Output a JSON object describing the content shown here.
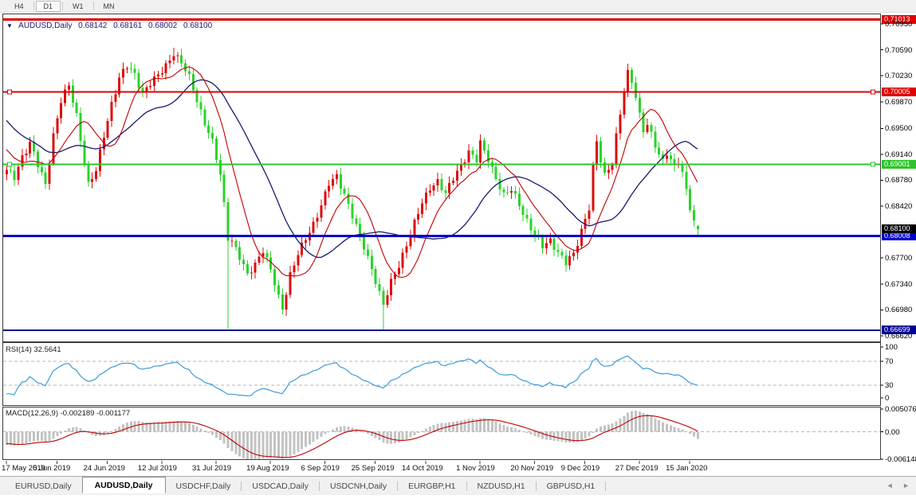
{
  "toolbar": {
    "timeframes": [
      {
        "label": "H4",
        "active": false
      },
      {
        "label": "D1",
        "active": true
      },
      {
        "label": "W1",
        "active": false
      },
      {
        "label": "MN",
        "active": false
      }
    ]
  },
  "chart": {
    "title": {
      "dropdown_icon": "▼",
      "symbol": "AUDUSD,Daily",
      "open": "0.68142",
      "high": "0.68161",
      "low": "0.68002",
      "close": "0.68100"
    },
    "indicators": {
      "rsi_label": "RSI(14) 32.5641",
      "macd_label": "MACD(12,26,9) -0.002189 -0.001177"
    },
    "axis": {
      "price_labels": [
        "0.70950",
        "0.70590",
        "0.70230",
        "0.69870",
        "0.69500",
        "0.69140",
        "0.68780",
        "0.68420",
        "0.67700",
        "0.67340",
        "0.66980",
        "0.66620"
      ],
      "rsi_labels": [
        "100",
        "70",
        "30",
        "0"
      ],
      "macd_labels": [
        {
          "text": "0.005076",
          "v": 0.005076
        },
        {
          "text": "0.00",
          "v": 0
        },
        {
          "text": "-0.006148",
          "v": -0.006148
        }
      ],
      "dates": [
        "17 May 2019",
        "5 Jun 2019",
        "24 Jun 2019",
        "12 Jul 2019",
        "31 Jul 2019",
        "19 Aug 2019",
        "6 Sep 2019",
        "25 Sep 2019",
        "14 Oct 2019",
        "1 Nov 2019",
        "20 Nov 2019",
        "9 Dec 2019",
        "27 Dec 2019",
        "15 Jan 2020"
      ],
      "date_indices": [
        0,
        13,
        26,
        40,
        54,
        68,
        82,
        95,
        108,
        122,
        136,
        149,
        163,
        176
      ]
    },
    "hlines": [
      {
        "price": 0.71013,
        "label": "0.71013",
        "color": "#e00000",
        "width": 3,
        "handles": false
      },
      {
        "price": 0.70005,
        "label": "0.70005",
        "color": "#e00000",
        "width": 2,
        "handles": true
      },
      {
        "price": 0.69001,
        "label": "0.69001",
        "color": "#2dc52d",
        "width": 2,
        "handles": true
      },
      {
        "price": 0.68008,
        "label": "0.68008",
        "color": "#0000c8",
        "width": 3,
        "handles": false
      },
      {
        "price": 0.66699,
        "label": "0.66699",
        "color": "#000096",
        "width": 2,
        "handles": false
      }
    ],
    "current_price": {
      "label": "0.68100",
      "price": 0.681,
      "badge_color": "#000000"
    },
    "colors": {
      "up_candle": "#dd0d0d",
      "down_candle": "#2bd32b",
      "ma_fast": "#c00000",
      "ma_slow": "#191970",
      "rsi_line": "#3e9bd8",
      "level_dash": "#b4b4b4",
      "macd_hist": "#c3c3c3",
      "macd_signal": "#c00000",
      "frame": "#3c3c3c"
    }
  },
  "chart_data": {
    "type": "candlestick",
    "symbol": "AUDUSD",
    "timeframe": "Daily",
    "title": "AUDUSD,Daily 0.68142 0.68161 0.68002 0.68100",
    "y_axis_range": [
      0.6655,
      0.7101
    ],
    "x_axis_dates": [
      "17 May 2019",
      "5 Jun 2019",
      "24 Jun 2019",
      "12 Jul 2019",
      "31 Jul 2019",
      "19 Aug 2019",
      "6 Sep 2019",
      "25 Sep 2019",
      "14 Oct 2019",
      "1 Nov 2019",
      "20 Nov 2019",
      "9 Dec 2019",
      "27 Dec 2019",
      "15 Jan 2020"
    ],
    "candle_count": 179,
    "last_candle_ohlc": [
      0.68142,
      0.68161,
      0.68002,
      0.681
    ],
    "close_anchors": [
      [
        0,
        0.689
      ],
      [
        2,
        0.6882
      ],
      [
        4,
        0.6912
      ],
      [
        6,
        0.693
      ],
      [
        8,
        0.6898
      ],
      [
        10,
        0.6872
      ],
      [
        12,
        0.6942
      ],
      [
        14,
        0.6988
      ],
      [
        16,
        0.7008
      ],
      [
        18,
        0.6968
      ],
      [
        20,
        0.6905
      ],
      [
        21,
        0.6872
      ],
      [
        23,
        0.689
      ],
      [
        25,
        0.694
      ],
      [
        27,
        0.6985
      ],
      [
        29,
        0.702
      ],
      [
        31,
        0.7035
      ],
      [
        33,
        0.7025
      ],
      [
        35,
        0.7
      ],
      [
        37,
        0.7012
      ],
      [
        39,
        0.7022
      ],
      [
        41,
        0.7038
      ],
      [
        43,
        0.7055
      ],
      [
        45,
        0.704
      ],
      [
        47,
        0.702
      ],
      [
        49,
        0.699
      ],
      [
        51,
        0.6958
      ],
      [
        53,
        0.693
      ],
      [
        55,
        0.6885
      ],
      [
        56,
        0.6845
      ],
      [
        57,
        0.68
      ],
      [
        58,
        0.6795
      ],
      [
        60,
        0.677
      ],
      [
        62,
        0.6745
      ],
      [
        64,
        0.6763
      ],
      [
        66,
        0.6782
      ],
      [
        68,
        0.6752
      ],
      [
        70,
        0.6715
      ],
      [
        71,
        0.67
      ],
      [
        73,
        0.6748
      ],
      [
        75,
        0.6775
      ],
      [
        77,
        0.6795
      ],
      [
        79,
        0.6818
      ],
      [
        81,
        0.6845
      ],
      [
        83,
        0.6872
      ],
      [
        85,
        0.6882
      ],
      [
        87,
        0.686
      ],
      [
        89,
        0.683
      ],
      [
        91,
        0.6798
      ],
      [
        93,
        0.677
      ],
      [
        95,
        0.674
      ],
      [
        97,
        0.6705
      ],
      [
        99,
        0.6735
      ],
      [
        101,
        0.676
      ],
      [
        103,
        0.679
      ],
      [
        105,
        0.6818
      ],
      [
        107,
        0.6845
      ],
      [
        109,
        0.6868
      ],
      [
        111,
        0.6878
      ],
      [
        113,
        0.6858
      ],
      [
        115,
        0.688
      ],
      [
        117,
        0.69
      ],
      [
        119,
        0.6918
      ],
      [
        121,
        0.6905
      ],
      [
        122,
        0.6928
      ],
      [
        124,
        0.6908
      ],
      [
        126,
        0.6882
      ],
      [
        128,
        0.6856
      ],
      [
        130,
        0.6864
      ],
      [
        132,
        0.6846
      ],
      [
        134,
        0.6822
      ],
      [
        136,
        0.68
      ],
      [
        138,
        0.6786
      ],
      [
        140,
        0.6796
      ],
      [
        142,
        0.6778
      ],
      [
        144,
        0.6762
      ],
      [
        146,
        0.6775
      ],
      [
        148,
        0.681
      ],
      [
        150,
        0.684
      ],
      [
        151,
        0.6895
      ],
      [
        152,
        0.693
      ],
      [
        153,
        0.6905
      ],
      [
        154,
        0.6885
      ],
      [
        155,
        0.6895
      ],
      [
        156,
        0.6905
      ],
      [
        157,
        0.694
      ],
      [
        158,
        0.697
      ],
      [
        159,
        0.7
      ],
      [
        160,
        0.7025
      ],
      [
        161,
        0.7015
      ],
      [
        162,
        0.6995
      ],
      [
        163,
        0.697
      ],
      [
        164,
        0.695
      ],
      [
        165,
        0.6955
      ],
      [
        166,
        0.694
      ],
      [
        167,
        0.6925
      ],
      [
        168,
        0.6912
      ],
      [
        169,
        0.6905
      ],
      [
        170,
        0.6918
      ],
      [
        171,
        0.6908
      ],
      [
        172,
        0.6898
      ],
      [
        173,
        0.6905
      ],
      [
        174,
        0.6885
      ],
      [
        175,
        0.6862
      ],
      [
        176,
        0.684
      ],
      [
        177,
        0.682
      ],
      [
        178,
        0.681
      ]
    ],
    "spike_lows": [
      [
        57,
        0.6672
      ],
      [
        97,
        0.667
      ]
    ],
    "spike_highs": [
      [
        43,
        0.7062
      ],
      [
        160,
        0.704
      ]
    ],
    "preroll": [
      0.704,
      0.7032,
      0.7038,
      0.7025,
      0.7015,
      0.702,
      0.7005,
      0.6995,
      0.7,
      0.6985,
      0.6975,
      0.698,
      0.6965,
      0.6958,
      0.6962,
      0.695,
      0.6945,
      0.695,
      0.6938,
      0.693,
      0.6935,
      0.6922,
      0.6915,
      0.6918,
      0.6908,
      0.69
    ],
    "horizontal_levels": [
      0.71013,
      0.70005,
      0.69001,
      0.68008,
      0.66699
    ],
    "series": [
      {
        "name": "MA-fast",
        "type": "line",
        "color": "#c00000",
        "period": 10
      },
      {
        "name": "MA-slow",
        "type": "line",
        "color": "#191970",
        "period": 25
      },
      {
        "name": "RSI",
        "type": "line",
        "period": 14,
        "last_value": 32.5641,
        "range": [
          0,
          100
        ],
        "levels": [
          30,
          70
        ]
      },
      {
        "name": "MACD",
        "type": "bar+line",
        "params": [
          12,
          26,
          9
        ],
        "last_macd": -0.002189,
        "last_signal": -0.001177,
        "axis": [
          0.005076,
          0,
          -0.006148
        ]
      }
    ],
    "legend_position": "none",
    "grid": false
  },
  "tabs": {
    "items": [
      {
        "label": "EURUSD,Daily",
        "active": false
      },
      {
        "label": "AUDUSD,Daily",
        "active": true
      },
      {
        "label": "USDCHF,Daily",
        "active": false
      },
      {
        "label": "USDCAD,Daily",
        "active": false
      },
      {
        "label": "USDCNH,Daily",
        "active": false
      },
      {
        "label": "EURGBP,H1",
        "active": false
      },
      {
        "label": "NZDUSD,H1",
        "active": false
      },
      {
        "label": "GBPUSD,H1",
        "active": false
      }
    ],
    "scroll_left": "◄",
    "scroll_right": "►"
  }
}
